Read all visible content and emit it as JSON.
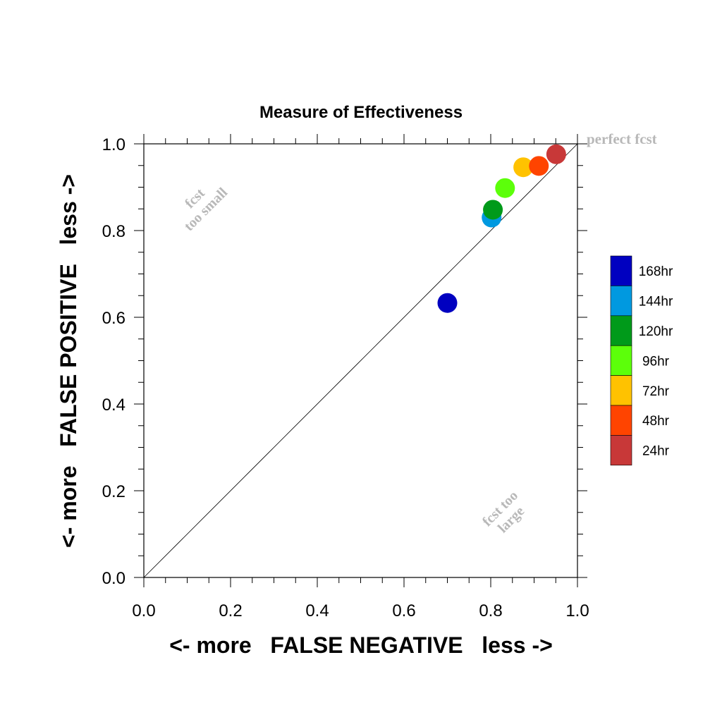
{
  "chart_data": {
    "type": "scatter",
    "title": "Measure of Effectiveness",
    "xlabel": "<- more   FALSE NEGATIVE   less ->",
    "ylabel": "<- more   FALSE POSITIVE   less ->",
    "xlim": [
      0,
      1
    ],
    "ylim": [
      0,
      1
    ],
    "x_ticks": [
      "0.0",
      "0.2",
      "0.4",
      "0.6",
      "0.8",
      "1.0"
    ],
    "y_ticks": [
      "0.0",
      "0.2",
      "0.4",
      "0.6",
      "0.8",
      "1.0"
    ],
    "grid": false,
    "diagonal_line": true,
    "annotations": {
      "perfect": "perfect fcst",
      "too_small_line1": "fcst",
      "too_small_line2": "too small",
      "too_large_line1": "fcst too",
      "too_large_line2": "large"
    },
    "legend_position": "right",
    "series": [
      {
        "name": "168hr",
        "color": "#0000c0",
        "x": 0.7,
        "y": 0.633
      },
      {
        "name": "144hr",
        "color": "#0099e0",
        "x": 0.802,
        "y": 0.83
      },
      {
        "name": "120hr",
        "color": "#009a1a",
        "x": 0.805,
        "y": 0.848
      },
      {
        "name": "96hr",
        "color": "#5cff0a",
        "x": 0.833,
        "y": 0.898
      },
      {
        "name": "72hr",
        "color": "#ffc200",
        "x": 0.875,
        "y": 0.946
      },
      {
        "name": "48hr",
        "color": "#ff4400",
        "x": 0.911,
        "y": 0.949
      },
      {
        "name": "24hr",
        "color": "#c83838",
        "x": 0.951,
        "y": 0.976
      }
    ]
  }
}
